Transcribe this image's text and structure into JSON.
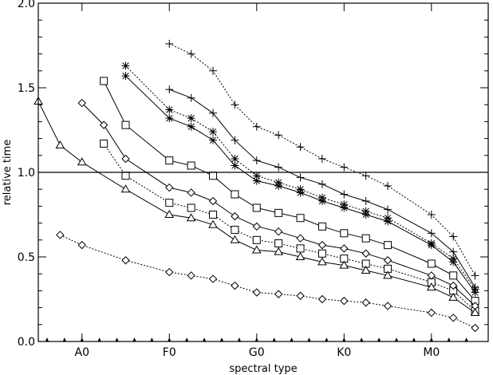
{
  "chart_data": {
    "type": "line",
    "xlabel": "spectral type",
    "ylabel": "relative time",
    "xlim": [
      0,
      10.3
    ],
    "ylim": [
      0,
      2.0
    ],
    "x_tick_labels": [
      {
        "x": 1,
        "label": "A0"
      },
      {
        "x": 3,
        "label": "F0"
      },
      {
        "x": 5,
        "label": "G0"
      },
      {
        "x": 7,
        "label": "K0"
      },
      {
        "x": 9,
        "label": "M0"
      }
    ],
    "y_ticks": [
      0.0,
      0.5,
      1.0,
      1.5,
      2.0
    ],
    "y_tick_labels": [
      "0.0",
      "0.5",
      "1.0",
      "1.5",
      "2.0"
    ],
    "minor_x_positions": [
      0.2,
      0.6,
      1.0,
      1.4,
      1.8,
      2.2,
      2.6,
      3.0,
      3.4,
      3.8,
      4.2,
      4.6,
      5.0,
      5.4,
      5.8,
      6.2,
      6.6,
      7.0,
      7.4,
      7.8,
      8.2,
      8.6,
      9.0,
      9.4,
      9.8
    ],
    "reference_line": {
      "y": 1.0
    },
    "grid": false,
    "series": [
      {
        "marker": "plus",
        "style": "dotted",
        "x": [
          3.0,
          3.5,
          4.0,
          4.5,
          5.0,
          5.5,
          6.0,
          6.5,
          7.0,
          7.5,
          8.0,
          9.0,
          9.5,
          10.0
        ],
        "values": [
          1.76,
          1.7,
          1.6,
          1.4,
          1.27,
          1.22,
          1.15,
          1.08,
          1.03,
          0.98,
          0.92,
          0.75,
          0.62,
          0.39
        ]
      },
      {
        "marker": "plus",
        "style": "solid",
        "x": [
          3.0,
          3.5,
          4.0,
          4.5,
          5.0,
          5.5,
          6.0,
          6.5,
          7.0,
          7.5,
          8.0,
          9.0,
          9.5,
          10.0
        ],
        "values": [
          1.49,
          1.44,
          1.35,
          1.19,
          1.07,
          1.03,
          0.97,
          0.93,
          0.87,
          0.83,
          0.78,
          0.64,
          0.53,
          0.32
        ]
      },
      {
        "marker": "asterisk",
        "style": "dotted",
        "x": [
          2.0,
          3.0,
          3.5,
          4.0,
          4.5,
          5.0,
          5.5,
          6.0,
          6.5,
          7.0,
          7.5,
          8.0,
          9.0,
          9.5,
          10.0
        ],
        "values": [
          1.63,
          1.37,
          1.32,
          1.24,
          1.08,
          0.98,
          0.94,
          0.9,
          0.85,
          0.81,
          0.77,
          0.73,
          0.58,
          0.49,
          0.31
        ]
      },
      {
        "marker": "asterisk",
        "style": "solid",
        "x": [
          2.0,
          3.0,
          3.5,
          4.0,
          4.5,
          5.0,
          5.5,
          6.0,
          6.5,
          7.0,
          7.5,
          8.0,
          9.0,
          9.5,
          10.0
        ],
        "values": [
          1.57,
          1.32,
          1.27,
          1.19,
          1.04,
          0.95,
          0.92,
          0.88,
          0.83,
          0.79,
          0.75,
          0.71,
          0.57,
          0.47,
          0.29
        ]
      },
      {
        "marker": "square",
        "style": "solid",
        "x": [
          1.5,
          2.0,
          3.0,
          3.5,
          4.0,
          4.5,
          5.0,
          5.5,
          6.0,
          6.5,
          7.0,
          7.5,
          8.0,
          9.0,
          9.5,
          10.0
        ],
        "values": [
          1.54,
          1.28,
          1.07,
          1.04,
          0.98,
          0.87,
          0.79,
          0.76,
          0.73,
          0.68,
          0.64,
          0.61,
          0.57,
          0.46,
          0.39,
          0.24
        ]
      },
      {
        "marker": "square",
        "style": "dotted",
        "x": [
          1.5,
          2.0,
          3.0,
          3.5,
          4.0,
          4.5,
          5.0,
          5.5,
          6.0,
          6.5,
          7.0,
          7.5,
          8.0,
          9.0,
          9.5,
          10.0
        ],
        "values": [
          1.17,
          0.98,
          0.82,
          0.79,
          0.75,
          0.66,
          0.6,
          0.58,
          0.55,
          0.52,
          0.49,
          0.46,
          0.43,
          0.35,
          0.3,
          0.18
        ]
      },
      {
        "marker": "diamond",
        "style": "solid",
        "x": [
          1.0,
          1.5,
          2.0,
          3.0,
          3.5,
          4.0,
          4.5,
          5.0,
          5.5,
          6.0,
          6.5,
          7.0,
          7.5,
          8.0,
          9.0,
          9.5,
          10.0
        ],
        "values": [
          1.41,
          1.28,
          1.08,
          0.91,
          0.88,
          0.83,
          0.74,
          0.68,
          0.65,
          0.61,
          0.57,
          0.55,
          0.52,
          0.48,
          0.39,
          0.33,
          0.21
        ]
      },
      {
        "marker": "triangle",
        "style": "solid",
        "x": [
          0.0,
          0.5,
          1.0,
          2.0,
          3.0,
          3.5,
          4.0,
          4.5,
          5.0,
          5.5,
          6.0,
          6.5,
          7.0,
          7.5,
          8.0,
          9.0,
          9.5,
          10.0
        ],
        "values": [
          1.42,
          1.16,
          1.06,
          0.9,
          0.75,
          0.73,
          0.69,
          0.6,
          0.54,
          0.53,
          0.5,
          0.47,
          0.45,
          0.42,
          0.39,
          0.32,
          0.26,
          0.17
        ]
      },
      {
        "marker": "diamond",
        "style": "dotted",
        "x": [
          0.5,
          1.0,
          2.0,
          3.0,
          3.5,
          4.0,
          4.5,
          5.0,
          5.5,
          6.0,
          6.5,
          7.0,
          7.5,
          8.0,
          9.0,
          9.5,
          10.0
        ],
        "values": [
          0.63,
          0.57,
          0.48,
          0.41,
          0.39,
          0.37,
          0.33,
          0.29,
          0.28,
          0.27,
          0.25,
          0.24,
          0.23,
          0.21,
          0.17,
          0.14,
          0.08
        ]
      }
    ]
  }
}
